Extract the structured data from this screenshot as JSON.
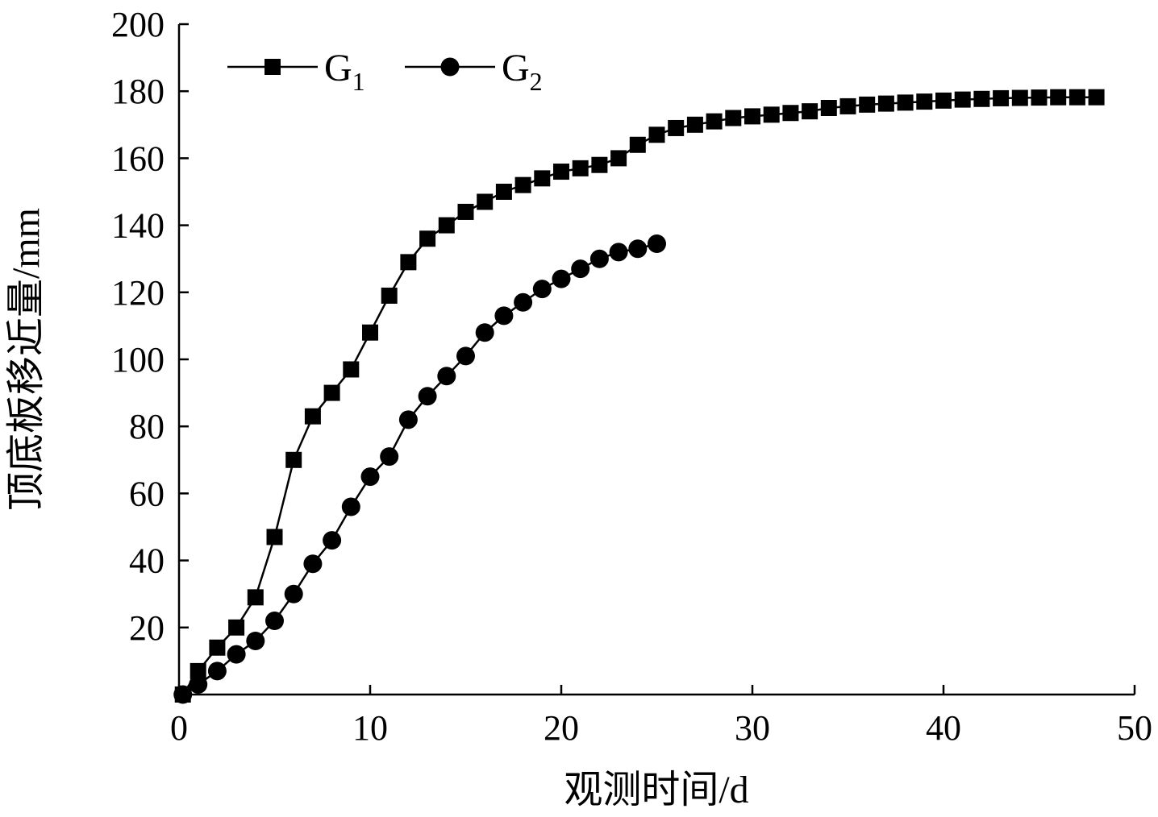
{
  "chart_data": {
    "type": "line",
    "xlabel": "观测时间/d",
    "ylabel": "顶底板移近量/mm",
    "xlim": [
      0,
      50
    ],
    "ylim": [
      0,
      200
    ],
    "xticks": [
      "0",
      "10",
      "20",
      "30",
      "40",
      "50"
    ],
    "yticks": [
      "20",
      "40",
      "60",
      "80",
      "100",
      "120",
      "140",
      "160",
      "180",
      "200"
    ],
    "grid": false,
    "legend_position": "top-left",
    "series": [
      {
        "name": "G1",
        "label_main": "G",
        "label_sub": "1",
        "marker": "square",
        "color": "#000000",
        "x": [
          0.2,
          1,
          2,
          3,
          4,
          5,
          6,
          7,
          8,
          9,
          10,
          11,
          12,
          13,
          14,
          15,
          16,
          17,
          18,
          19,
          20,
          21,
          22,
          23,
          24,
          25,
          26,
          27,
          28,
          29,
          30,
          31,
          32,
          33,
          34,
          35,
          36,
          37,
          38,
          39,
          40,
          41,
          42,
          43,
          44,
          45,
          46,
          47,
          48
        ],
        "y": [
          0,
          7,
          14,
          20,
          29,
          47,
          70,
          83,
          90,
          97,
          108,
          119,
          129,
          136,
          140,
          144,
          147,
          150,
          152,
          154,
          156,
          157,
          158,
          160,
          164,
          167,
          169,
          170,
          171,
          172,
          172.5,
          173,
          173.5,
          174,
          175,
          175.5,
          176,
          176.3,
          176.6,
          176.9,
          177.2,
          177.5,
          177.7,
          177.9,
          178,
          178.1,
          178.2,
          178.2,
          178.2
        ]
      },
      {
        "name": "G2",
        "label_main": "G",
        "label_sub": "2",
        "marker": "circle",
        "color": "#000000",
        "x": [
          0.2,
          1,
          2,
          3,
          4,
          5,
          6,
          7,
          8,
          9,
          10,
          11,
          12,
          13,
          14,
          15,
          16,
          17,
          18,
          19,
          20,
          21,
          22,
          23,
          24,
          25
        ],
        "y": [
          0,
          3,
          7,
          12,
          16,
          22,
          30,
          39,
          46,
          56,
          65,
          71,
          82,
          89,
          95,
          101,
          108,
          113,
          117,
          121,
          124,
          127,
          130,
          132,
          133,
          134.5
        ]
      }
    ]
  }
}
